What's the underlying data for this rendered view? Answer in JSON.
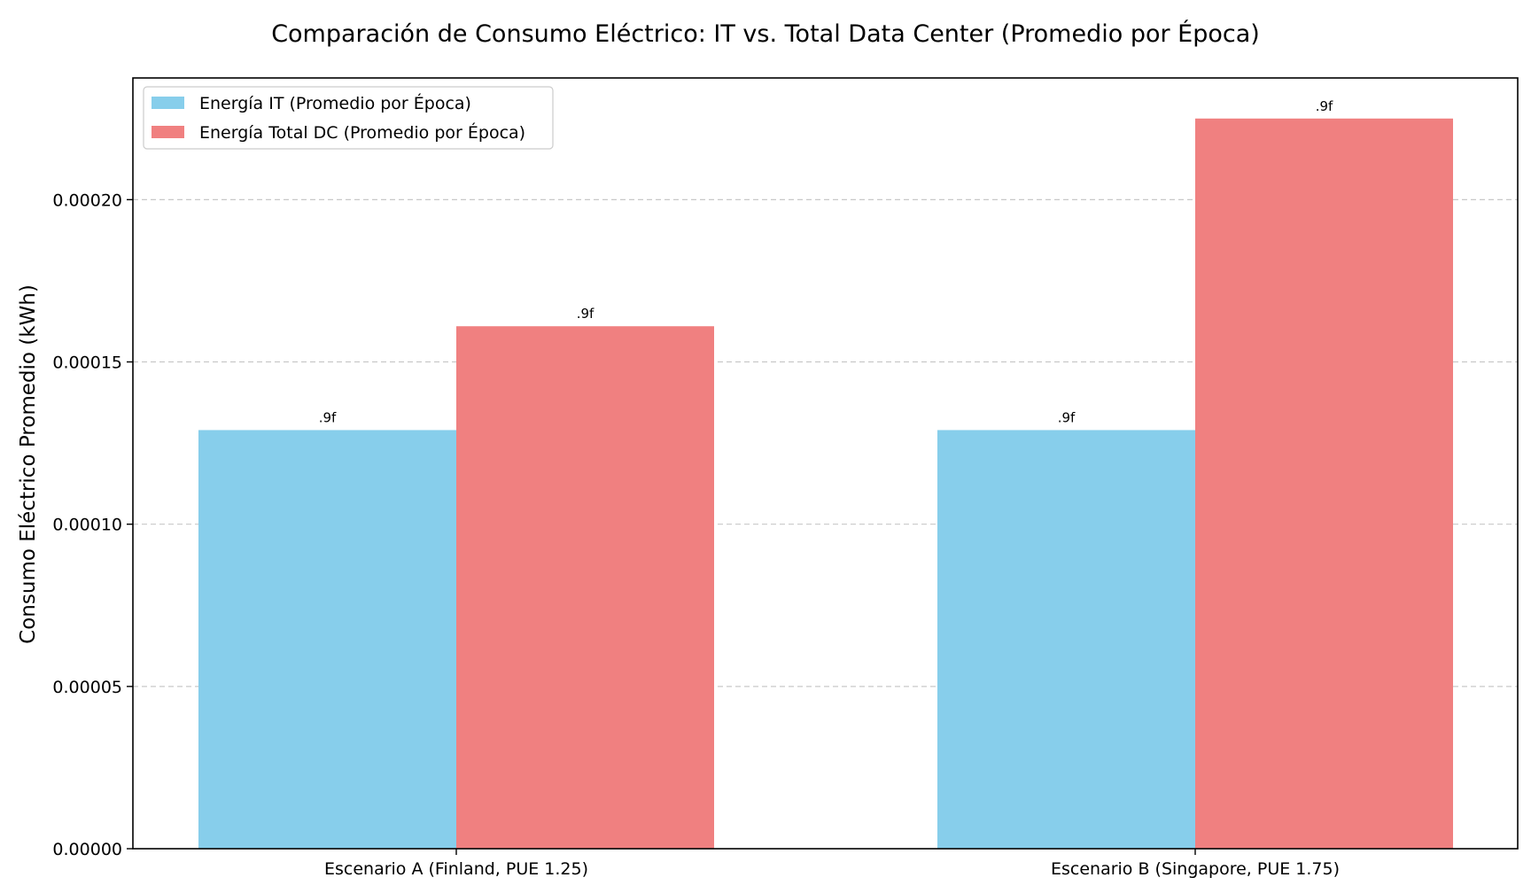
{
  "chart_data": {
    "type": "bar",
    "title": "Comparación de Consumo Eléctrico: IT vs. Total Data Center (Promedio por Época)",
    "xlabel": "",
    "ylabel": "Consumo Eléctrico Promedio (kWh)",
    "categories": [
      "Escenario A (Finland, PUE 1.25)",
      "Escenario B (Singapore, PUE 1.75)"
    ],
    "series": [
      {
        "name": "Energía IT (Promedio por Época)",
        "values": [
          0.000129,
          0.000129
        ],
        "color": "#87CEEB",
        "data_labels": [
          ".9f",
          ".9f"
        ]
      },
      {
        "name": "Energía Total DC (Promedio por Época)",
        "values": [
          0.000161,
          0.000225
        ],
        "color": "#F08080",
        "data_labels": [
          ".9f",
          ".9f"
        ]
      }
    ],
    "ylim": [
      0,
      0.0002375
    ],
    "yticks": [
      0,
      5e-05,
      0.0001,
      0.00015,
      0.0002
    ],
    "ytick_labels": [
      "0.00000",
      "0.00005",
      "0.00010",
      "0.00015",
      "0.00020"
    ],
    "grid": "y-dashed",
    "legend": "top-left"
  }
}
